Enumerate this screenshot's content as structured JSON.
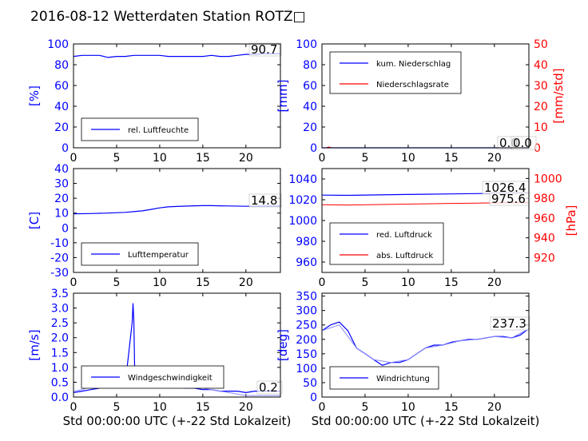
{
  "title": "2016-08-12 Wetterdaten Station ROTZ□",
  "chart_data": [
    {
      "type": "line",
      "ylabel": "[%]",
      "xlim": [
        0,
        24
      ],
      "ylim": [
        0,
        100
      ],
      "yticks": [
        0,
        20,
        40,
        60,
        80,
        100
      ],
      "xticks": [
        0,
        5,
        10,
        15,
        20
      ],
      "xlabel": "",
      "legend_position": "lower-center",
      "value_labels": [
        "90.7"
      ],
      "series": [
        {
          "name": "rel. Luftfeuchte",
          "color": "#0000ff",
          "x": [
            0,
            1,
            2,
            3,
            4,
            5,
            6,
            7,
            8,
            9,
            10,
            11,
            12,
            13,
            14,
            15,
            16,
            17,
            18,
            19,
            20,
            21,
            22,
            23,
            24
          ],
          "y": [
            88,
            89,
            89,
            89,
            87,
            88,
            88,
            89,
            89,
            89,
            89,
            88,
            88,
            88,
            88,
            88,
            89,
            88,
            88,
            89,
            90,
            90,
            90.7,
            90.5,
            90.7
          ]
        }
      ]
    },
    {
      "type": "line",
      "ylabel": "[mm]",
      "ylabel2": "[mm/std]",
      "xlim": [
        0,
        24
      ],
      "ylim": [
        0,
        100
      ],
      "ylim2": [
        0,
        50
      ],
      "yticks": [
        0,
        20,
        40,
        60,
        80,
        100
      ],
      "yticks2": [
        0,
        10,
        20,
        30,
        40,
        50
      ],
      "xticks": [
        0,
        5,
        10,
        15,
        20
      ],
      "xlabel": "",
      "legend_position": "upper-left",
      "value_labels": [
        "0.0",
        "0.0"
      ],
      "series": [
        {
          "name": "kum. Niederschlag",
          "color": "#0000ff",
          "axis": "left",
          "x": [
            0,
            24
          ],
          "y": [
            0,
            0
          ]
        },
        {
          "name": "Niederschlagsrate",
          "color": "#ff0000",
          "axis": "right",
          "x": [
            0,
            0.5,
            0.8,
            1.1,
            1.5,
            24
          ],
          "y": [
            0,
            0,
            0.4,
            0,
            0,
            0
          ]
        }
      ]
    },
    {
      "type": "line",
      "ylabel": "[C]",
      "xlim": [
        0,
        24
      ],
      "ylim": [
        -30,
        40
      ],
      "yticks": [
        -30,
        -20,
        -10,
        0,
        10,
        20,
        30,
        40
      ],
      "xticks": [
        0,
        5,
        10,
        15,
        20
      ],
      "xlabel": "",
      "legend_position": "lower-center",
      "value_labels": [
        "14.8"
      ],
      "series": [
        {
          "name": "Lufttemperatur",
          "color": "#0000ff",
          "x": [
            0,
            2,
            4,
            6,
            7,
            8,
            9,
            10,
            11,
            12,
            13,
            14,
            15,
            16,
            17,
            18,
            20,
            22,
            24
          ],
          "y": [
            9.5,
            9.7,
            10.0,
            10.5,
            11.0,
            11.5,
            12.5,
            13.5,
            14.2,
            14.5,
            14.7,
            14.9,
            15.0,
            15.0,
            14.9,
            14.8,
            14.6,
            14.7,
            14.8
          ]
        }
      ]
    },
    {
      "type": "line",
      "ylabel": "[hPa]",
      "xlim": [
        0,
        24
      ],
      "ylim": [
        950,
        1050
      ],
      "ylim2": [
        905,
        1010
      ],
      "yticks": [
        960,
        980,
        1000,
        1020,
        1040
      ],
      "yticks2": [
        920,
        940,
        960,
        980,
        1000
      ],
      "xticks": [
        0,
        5,
        10,
        15,
        20
      ],
      "xlabel": "",
      "legend_position": "lower-left",
      "value_labels": [
        "1026.4",
        "975.6"
      ],
      "series": [
        {
          "name": "red. Luftdruck",
          "color": "#0000ff",
          "axis": "left",
          "x": [
            0,
            3,
            6,
            9,
            12,
            15,
            18,
            21,
            24
          ],
          "y": [
            1024.5,
            1024.2,
            1024.6,
            1025.0,
            1025.3,
            1025.6,
            1025.9,
            1026.2,
            1026.4
          ]
        },
        {
          "name": "abs. Luftdruck",
          "color": "#ff0000",
          "axis": "right",
          "x": [
            0,
            3,
            6,
            9,
            12,
            15,
            18,
            21,
            24
          ],
          "y": [
            973.5,
            973.2,
            973.6,
            974.0,
            974.4,
            974.8,
            975.1,
            975.4,
            975.6
          ]
        }
      ]
    },
    {
      "type": "line",
      "ylabel": "[m/s]",
      "xlabel": "Std 00:00:00 UTC (+-22 Std Lokalzeit)",
      "xlim": [
        0,
        24
      ],
      "ylim": [
        0,
        3.5
      ],
      "yticks": [
        0.0,
        0.5,
        1.0,
        1.5,
        2.0,
        2.5,
        3.0,
        3.5
      ],
      "xticks": [
        0,
        5,
        10,
        15,
        20
      ],
      "legend_position": "lower-center",
      "value_labels": [
        "0.2"
      ],
      "series": [
        {
          "name": "Windgeschwindigkeit",
          "color": "#0000ff",
          "x": [
            0,
            1,
            2,
            3,
            4,
            5,
            6,
            6.8,
            6.9,
            7.0,
            7.1,
            7.3,
            7.6,
            8,
            9,
            10,
            11,
            12,
            13,
            14,
            15,
            16,
            17,
            18,
            19,
            20,
            21,
            22,
            23,
            24
          ],
          "y": [
            0.15,
            0.2,
            0.25,
            0.3,
            0.35,
            0.4,
            0.45,
            2.5,
            3.15,
            2.6,
            0.9,
            0.6,
            0.5,
            0.55,
            0.5,
            0.45,
            0.4,
            0.35,
            0.3,
            0.3,
            0.25,
            0.25,
            0.2,
            0.2,
            0.2,
            0.15,
            0.2,
            0.2,
            0.2,
            0.2
          ]
        },
        {
          "name": "",
          "color": "#8a8aff",
          "x": [
            0,
            1,
            2,
            3,
            4,
            5,
            6,
            7,
            8,
            9,
            10,
            11,
            12,
            13,
            14,
            15,
            16,
            17,
            18,
            19,
            20,
            21,
            22,
            23,
            24
          ],
          "y": [
            0.2,
            0.25,
            0.35,
            0.45,
            0.55,
            0.6,
            0.65,
            0.7,
            0.65,
            0.6,
            0.55,
            0.5,
            0.45,
            0.4,
            0.35,
            0.3,
            0.25,
            0.2,
            0.15,
            0.1,
            0.05,
            0.05,
            0.05,
            0.05,
            0.05
          ]
        }
      ]
    },
    {
      "type": "line",
      "ylabel": "[deg]",
      "xlabel": "Std 00:00:00 UTC (+-22 Std Lokalzeit)",
      "xlim": [
        0,
        24
      ],
      "ylim": [
        0,
        360
      ],
      "yticks": [
        0,
        50,
        100,
        150,
        200,
        250,
        300,
        350
      ],
      "xticks": [
        0,
        5,
        10,
        15,
        20
      ],
      "legend_position": "lower-center",
      "value_labels": [
        "237.3"
      ],
      "series": [
        {
          "name": "Windrichtung",
          "color": "#0000ff",
          "x": [
            0,
            1,
            2,
            3,
            4,
            5,
            6,
            7,
            8,
            9,
            10,
            11,
            12,
            13,
            14,
            15,
            16,
            17,
            18,
            19,
            20,
            21,
            22,
            23,
            24
          ],
          "y": [
            230,
            250,
            260,
            230,
            170,
            150,
            130,
            110,
            120,
            120,
            130,
            150,
            170,
            180,
            180,
            190,
            195,
            200,
            200,
            205,
            210,
            210,
            205,
            215,
            237.3
          ]
        },
        {
          "name": "",
          "color": "#8a8aff",
          "x": [
            0,
            2,
            4,
            6,
            8,
            10,
            12,
            14,
            16,
            18,
            20,
            22,
            24
          ],
          "y": [
            230,
            250,
            170,
            130,
            120,
            130,
            170,
            180,
            195,
            200,
            210,
            205,
            237
          ]
        }
      ]
    }
  ]
}
